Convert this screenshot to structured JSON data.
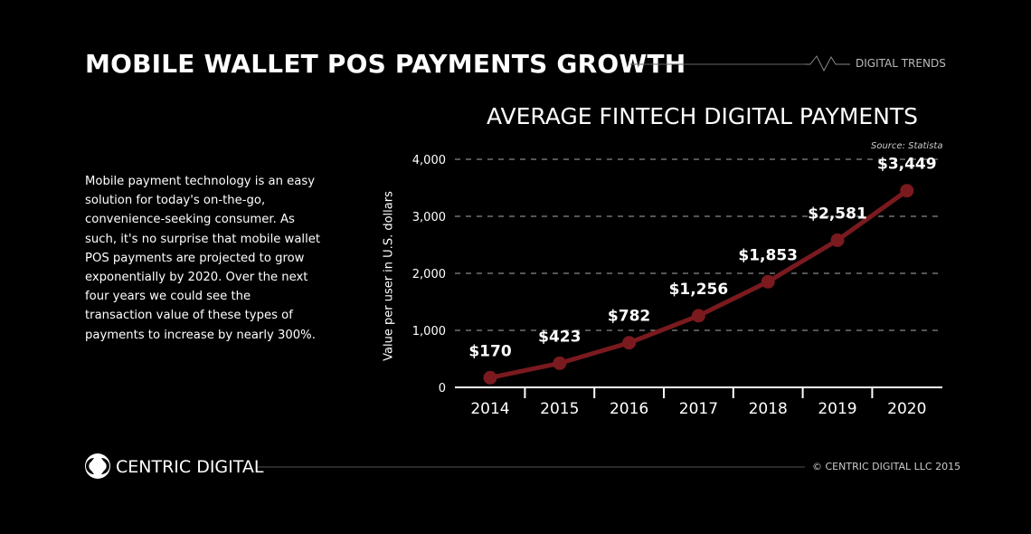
{
  "header": {
    "title": "MOBILE WALLET POS PAYMENTS GROWTH",
    "tag": "DIGITAL TRENDS"
  },
  "description": "Mobile payment technology is an easy solution for today's on-the-go, convenience-seeking consumer. As such, it's no surprise that mobile wallet POS payments are projected to grow exponentially by 2020. Over the next four years we could see the transaction value of these types of payments to increase by nearly 300%.",
  "footer": {
    "brand": "CENTRIC DIGITAL",
    "copyright": "© CENTRIC DIGITAL LLC 2015"
  },
  "chart_data": {
    "type": "line",
    "title": "AVERAGE FINTECH DIGITAL PAYMENTS",
    "source": "Source:  Statista",
    "xlabel": "",
    "ylabel": "Value per user in U.S. dollars",
    "categories": [
      "2014",
      "2015",
      "2016",
      "2017",
      "2018",
      "2019",
      "2020"
    ],
    "values": [
      170,
      423,
      782,
      1256,
      1853,
      2581,
      3449
    ],
    "data_labels": [
      "$170",
      "$423",
      "$782",
      "$1,256",
      "$1,853",
      "$2,581",
      "$3,449"
    ],
    "ylim": [
      0,
      4000
    ],
    "yticks": [
      0,
      1000,
      2000,
      3000,
      4000
    ],
    "ytick_labels": [
      "0",
      "1,000",
      "2,000",
      "3,000",
      "4,000"
    ],
    "grid": true,
    "line_color": "#7a1a1f"
  }
}
